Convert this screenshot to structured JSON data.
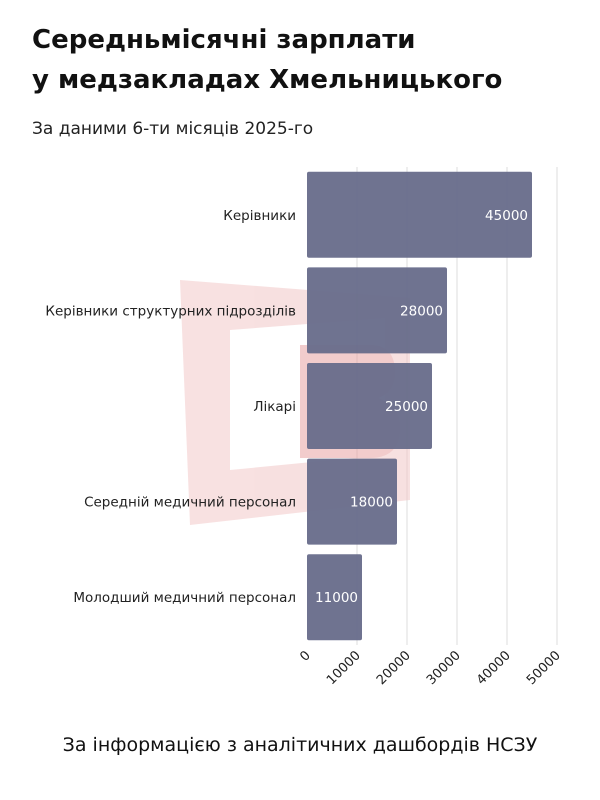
{
  "title_lines": [
    "Середньмісячні зарплати",
    "у медзакладах Хмельницького"
  ],
  "subtitle": "За даними 6-ти місяців 2025-го",
  "footer": "За інформацією з аналітичних дашбордів НСЗУ",
  "colors": {
    "bar": "#676b8a",
    "grid": "#dddddd",
    "watermark": "#f2c8c8"
  },
  "chart_data": {
    "type": "bar",
    "orientation": "horizontal",
    "categories": [
      "Керівники",
      "Керівники структурних підрозділів",
      "Лікарі",
      "Середній медичний персонал",
      "Молодший медичний персонал"
    ],
    "values": [
      45000,
      28000,
      25000,
      18000,
      11000
    ],
    "data_labels": [
      "45000",
      "28000",
      "25000",
      "18000",
      "11000"
    ],
    "xlim": [
      0,
      50000
    ],
    "x_ticks": [
      0,
      10000,
      20000,
      30000,
      40000,
      50000
    ],
    "x_tick_labels": [
      "0",
      "10000",
      "20000",
      "30000",
      "40000",
      "50000"
    ],
    "grid": true
  }
}
